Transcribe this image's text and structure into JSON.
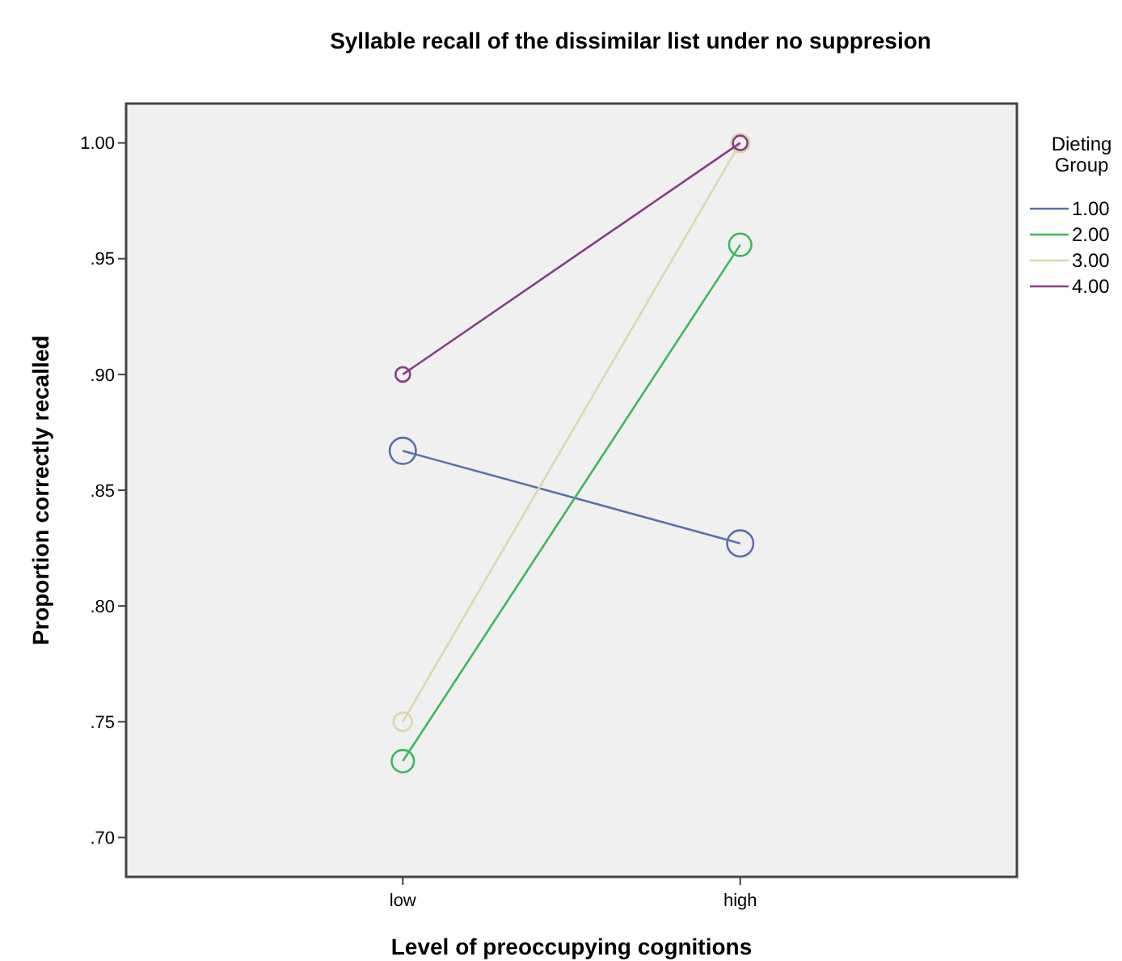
{
  "chart_data": {
    "type": "line",
    "title": "Syllable recall of the dissimilar list under no suppresion",
    "xlabel": "Level of preoccupying cognitions",
    "ylabel": "Proportion correctly recalled",
    "legend_title": "Dieting Group",
    "categories": [
      "low",
      "high"
    ],
    "series": [
      {
        "name": "1.00",
        "color": "#5b6fae",
        "values": [
          0.867,
          0.827
        ]
      },
      {
        "name": "2.00",
        "color": "#3cb85a",
        "values": [
          0.733,
          0.956
        ]
      },
      {
        "name": "3.00",
        "color": "#dcd8ae",
        "values": [
          0.75,
          1.0
        ]
      },
      {
        "name": "4.00",
        "color": "#8a3c88",
        "values": [
          0.9,
          1.0
        ]
      }
    ],
    "ylim": [
      0.683,
      1.017
    ],
    "yticks": [
      {
        "value": 0.7,
        "label": ".70"
      },
      {
        "value": 0.75,
        "label": ".75"
      },
      {
        "value": 0.8,
        "label": ".80"
      },
      {
        "value": 0.85,
        "label": ".85"
      },
      {
        "value": 0.9,
        "label": ".90"
      },
      {
        "value": 0.95,
        "label": ".95"
      },
      {
        "value": 1.0,
        "label": "1.00"
      }
    ],
    "grid": false,
    "legend": "right",
    "marker": "circle",
    "line_style": "solid"
  }
}
